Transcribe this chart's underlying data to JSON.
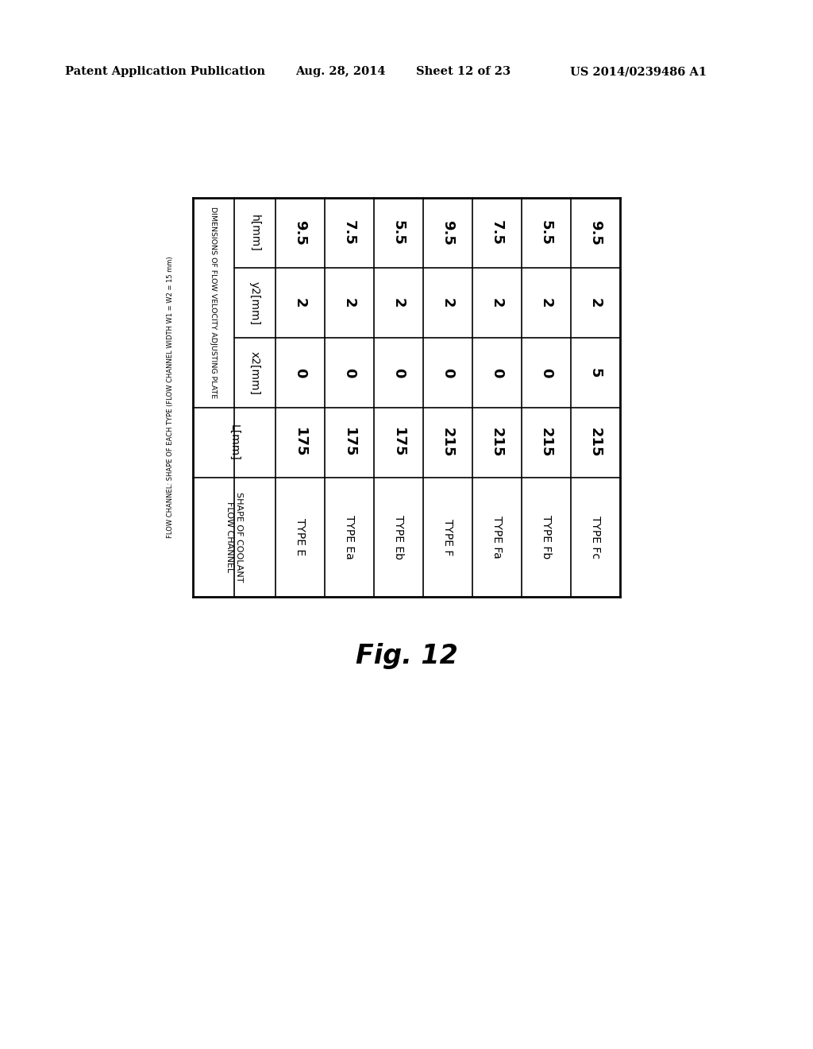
{
  "header_line1": "Patent Application Publication",
  "header_date": "Aug. 28, 2014",
  "header_sheet": "Sheet 12 of 23",
  "header_patent": "US 2014/0239486 A1",
  "fig_label": "Fig. 12",
  "table_super_title": "FLOW CHANNEL: SHAPE OF EACH TYPE (FLOW CHANNEL WIDTH W1 = W2 = 15 mm)",
  "col_group_header": "DIMENSIONS OF FLOW VELOCITY ADJUSTING PLATE",
  "col1_header": "SHAPE OF COOLANT\nFLOW CHANNEL",
  "col2_header": "L[mm]",
  "col3_header": "x2[mm]",
  "col4_header": "y2[mm]",
  "col5_header": "h[mm]",
  "rows": [
    [
      "TYPE E",
      "175",
      "0",
      "2",
      "9.5"
    ],
    [
      "TYPE Ea",
      "175",
      "0",
      "2",
      "7.5"
    ],
    [
      "TYPE Eb",
      "175",
      "0",
      "2",
      "5.5"
    ],
    [
      "TYPE F",
      "215",
      "0",
      "2",
      "9.5"
    ],
    [
      "TYPE Fa",
      "215",
      "0",
      "2",
      "7.5"
    ],
    [
      "TYPE Fb",
      "215",
      "0",
      "2",
      "5.5"
    ],
    [
      "TYPE Fc",
      "215",
      "5",
      "2",
      "9.5"
    ]
  ],
  "background_color": "#ffffff",
  "text_color": "#000000",
  "line_color": "#000000"
}
